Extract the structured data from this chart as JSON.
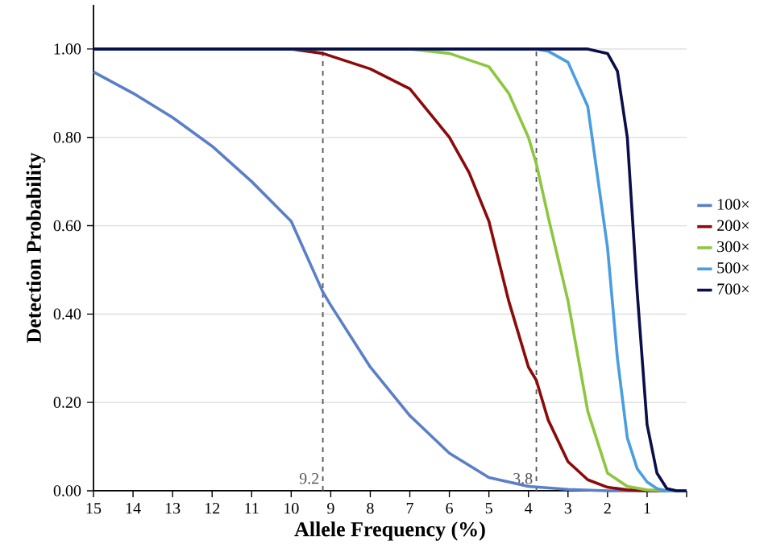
{
  "chart_data": {
    "type": "line",
    "xlabel": "Allele Frequency (%)",
    "ylabel": "Detection Probability",
    "xlim": [
      15,
      0
    ],
    "ylim": [
      0,
      1.1
    ],
    "xticks": [
      15,
      14,
      13,
      12,
      11,
      10,
      9,
      8,
      7,
      6,
      5,
      4,
      3,
      2,
      1,
      {
        "value": 0,
        "label": null
      }
    ],
    "yticks": [
      {
        "value": 0,
        "label": "0.00"
      },
      {
        "value": 0.2,
        "label": "0.20"
      },
      {
        "value": 0.4,
        "label": "0.40"
      },
      {
        "value": 0.6,
        "label": "0.60"
      },
      {
        "value": 0.8,
        "label": "0.80"
      },
      {
        "value": 1,
        "label": "1.00"
      }
    ],
    "grid": "y",
    "legend": "right",
    "marker": "none",
    "line_style": "solid",
    "ref_lines": [
      {
        "axis": "x",
        "value": 9.2,
        "label": "9.2",
        "color": "#555555",
        "line_style": "dashed"
      },
      {
        "axis": "x",
        "value": 3.8,
        "label": "3.8",
        "color": "#555555",
        "line_style": "dashed"
      }
    ],
    "series": [
      {
        "name": "100×",
        "color": "#5b7fc7",
        "x": [
          15,
          14,
          13,
          12,
          11,
          10,
          9.2,
          9,
          8,
          7,
          6,
          5,
          4,
          3,
          2,
          1,
          0
        ],
        "values": [
          0.948,
          0.9,
          0.845,
          0.78,
          0.7,
          0.61,
          0.45,
          0.42,
          0.28,
          0.17,
          0.085,
          0.03,
          0.01,
          0.003,
          0,
          0,
          0
        ]
      },
      {
        "name": "200×",
        "color": "#8b0a0a",
        "x": [
          15,
          10,
          9.2,
          8,
          7,
          6,
          5.5,
          5,
          4.5,
          4,
          3.8,
          3.5,
          3,
          2.5,
          2,
          1.5,
          1,
          0
        ],
        "values": [
          1,
          1,
          0.99,
          0.955,
          0.91,
          0.8,
          0.72,
          0.61,
          0.43,
          0.28,
          0.25,
          0.16,
          0.066,
          0.025,
          0.008,
          0.002,
          0,
          0
        ]
      },
      {
        "name": "300×",
        "color": "#8dc63f",
        "x": [
          15,
          7,
          6,
          5,
          4.5,
          4,
          3.8,
          3.5,
          3,
          2.5,
          2,
          1.5,
          1,
          0.5,
          0
        ],
        "values": [
          1,
          1,
          0.99,
          0.96,
          0.9,
          0.8,
          0.74,
          0.62,
          0.43,
          0.18,
          0.04,
          0.01,
          0.002,
          0,
          0
        ]
      },
      {
        "name": "500×",
        "color": "#4a9de0",
        "x": [
          15,
          3.8,
          3.5,
          3,
          2.5,
          2,
          1.75,
          1.5,
          1.25,
          1,
          0.75,
          0.5,
          0
        ],
        "values": [
          1,
          1,
          0.995,
          0.97,
          0.87,
          0.55,
          0.3,
          0.12,
          0.05,
          0.02,
          0.005,
          0,
          0
        ]
      },
      {
        "name": "700×",
        "color": "#0a0f4a",
        "x": [
          15,
          2.5,
          2,
          1.75,
          1.5,
          1.25,
          1,
          0.75,
          0.5,
          0.25,
          0
        ],
        "values": [
          1,
          1,
          0.99,
          0.95,
          0.8,
          0.45,
          0.15,
          0.04,
          0.005,
          0,
          0
        ]
      }
    ]
  }
}
